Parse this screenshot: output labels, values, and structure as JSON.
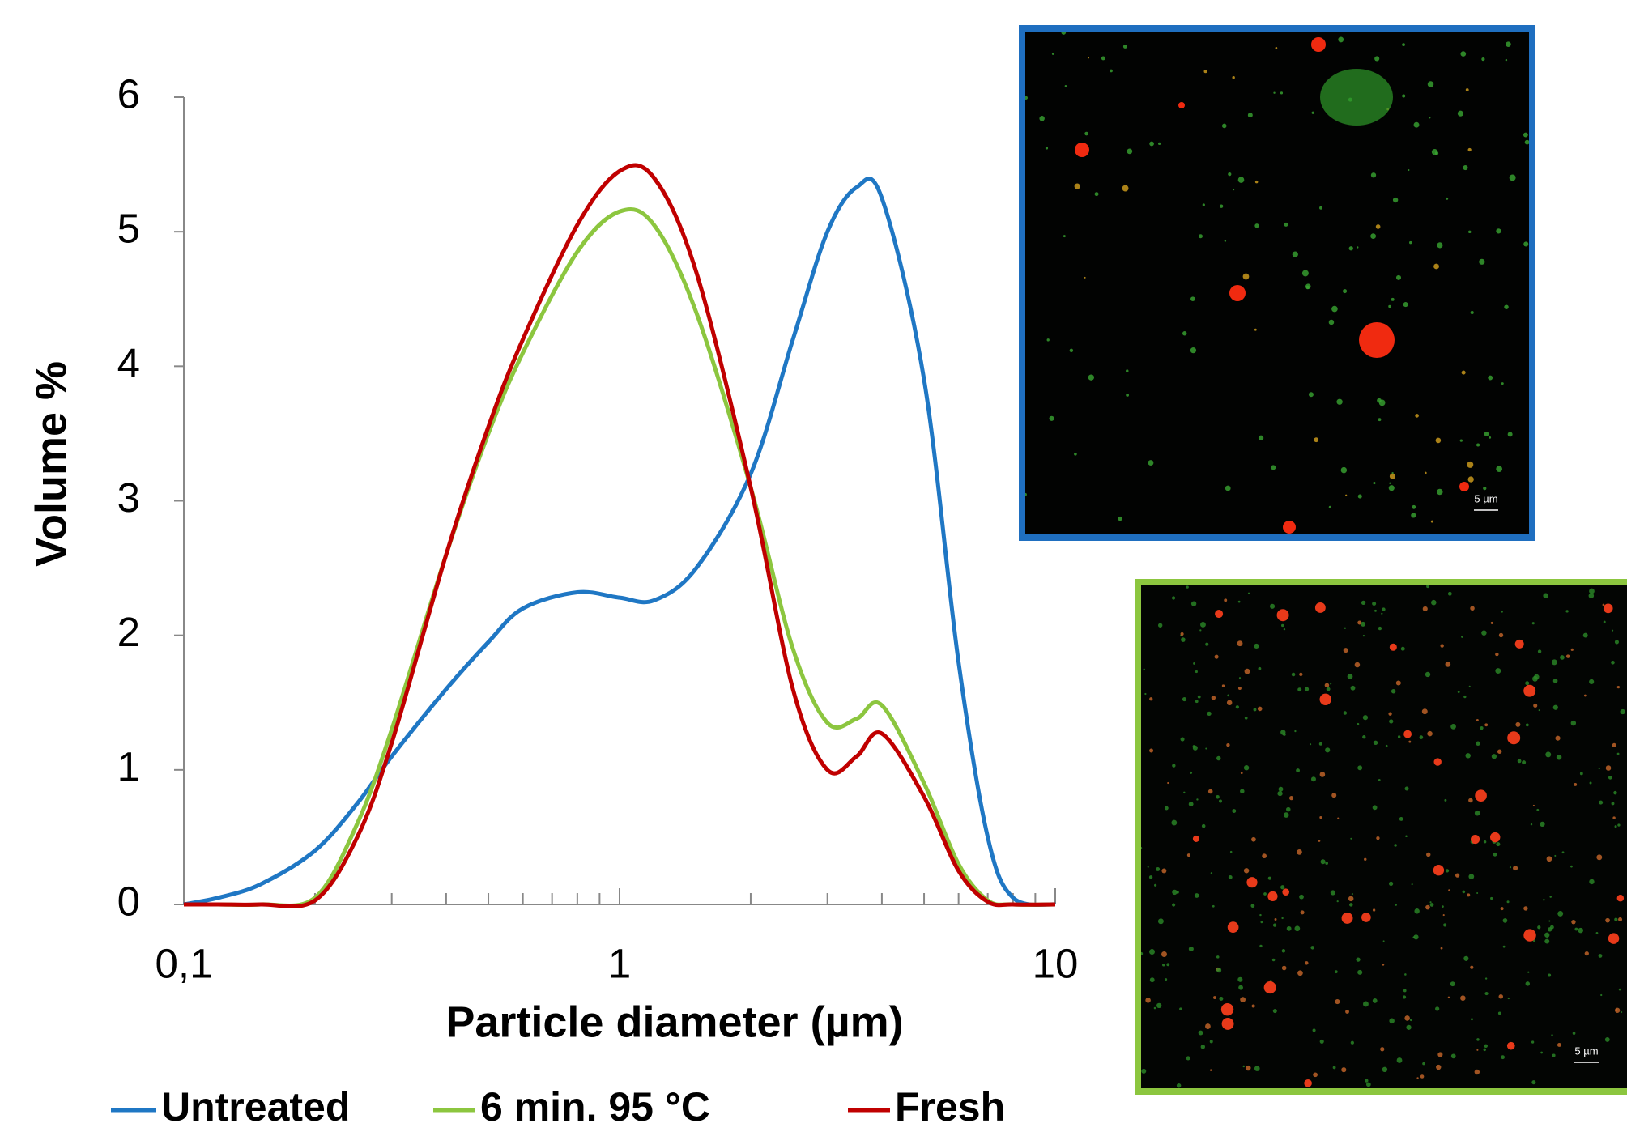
{
  "chart_data": {
    "type": "line",
    "xlabel": "Particle diameter (µm)",
    "ylabel": "Volume %",
    "log_x": true,
    "xlim": [
      0.1,
      10
    ],
    "xticks": [
      {
        "value": 0.1,
        "label": "0,1"
      },
      1,
      10
    ],
    "xminorticks": [
      0.2,
      0.3,
      0.4,
      0.5,
      0.6,
      0.7,
      0.8,
      0.9,
      2,
      3,
      4,
      5,
      6,
      7,
      8,
      9
    ],
    "ylim": [
      0,
      6
    ],
    "yticks": [
      0,
      1,
      2,
      3,
      4,
      5,
      6
    ],
    "x": [
      0.1,
      0.12,
      0.15,
      0.2,
      0.25,
      0.3,
      0.4,
      0.5,
      0.6,
      0.8,
      1,
      1.2,
      1.5,
      2,
      2.5,
      3,
      3.5,
      4,
      5,
      6,
      7,
      8,
      10
    ],
    "series": [
      {
        "name": "Untreated",
        "color": "#1f77c4",
        "values": [
          0,
          0.05,
          0.15,
          0.4,
          0.75,
          1.1,
          1.6,
          1.95,
          2.2,
          2.32,
          2.28,
          2.26,
          2.5,
          3.2,
          4.2,
          5.0,
          5.33,
          5.25,
          3.9,
          1.8,
          0.5,
          0.05,
          0
        ]
      },
      {
        "name": "6 min. 95 °C",
        "color": "#8cc63f",
        "values": [
          0,
          0,
          0,
          0.05,
          0.6,
          1.3,
          2.6,
          3.5,
          4.1,
          4.85,
          5.15,
          5.05,
          4.4,
          3.1,
          1.9,
          1.35,
          1.38,
          1.48,
          0.9,
          0.3,
          0.03,
          0,
          0
        ]
      },
      {
        "name": "Fresh",
        "color": "#c00000",
        "values": [
          0,
          0,
          0,
          0.03,
          0.5,
          1.2,
          2.6,
          3.55,
          4.2,
          5.05,
          5.45,
          5.4,
          4.7,
          3.1,
          1.6,
          1.0,
          1.1,
          1.27,
          0.8,
          0.25,
          0.02,
          0,
          0
        ]
      }
    ],
    "legend": "bottom",
    "annotations": [
      "5 µm",
      "5 µm"
    ]
  }
}
